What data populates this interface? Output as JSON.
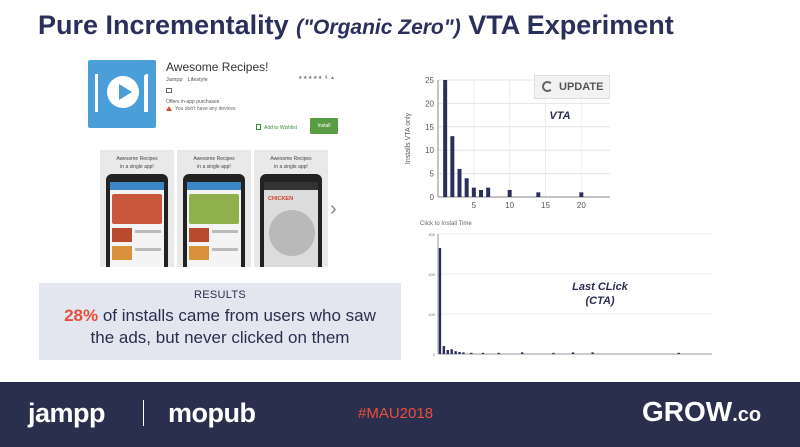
{
  "slide": {
    "title_main": "Pure Incrementality ",
    "title_italic": "(\"Organic Zero\")",
    "title_end": " VTA Experiment"
  },
  "store": {
    "app_name": "Awesome Recipes!",
    "developer": "Jampp",
    "category": "Lifestyle",
    "rating": "★★★★★ 4 ▲",
    "offers": "Offers in-app purchases",
    "devices": "You don't have any devices",
    "wishlist": "Add to Wishlist",
    "install": "Install",
    "accent": "#5a9c44"
  },
  "screenshots": [
    {
      "caption1": "Awesome Recipes",
      "caption2": "in a single app!"
    },
    {
      "caption1": "Awesome Recipes",
      "caption2": "in a single app!"
    },
    {
      "caption1": "Awesome Recipes",
      "caption2": "in a single app!",
      "overlay": "CHICKEN"
    }
  ],
  "results": {
    "heading": "RESULTS",
    "percent": "28%",
    "line1_rest": " of installs came from users who saw",
    "line2": "the ads, but never clicked on them"
  },
  "update_button": "UPDATE",
  "chart_data": [
    {
      "type": "bar",
      "label": "VTA",
      "ylabel": "Installs VTA only",
      "xlabel": "",
      "x": [
        1,
        2,
        3,
        4,
        5,
        6,
        7,
        10,
        14,
        20
      ],
      "values": [
        25,
        13,
        6,
        4,
        2,
        1.5,
        2,
        1.5,
        1,
        1
      ],
      "ylim": [
        0,
        25
      ],
      "xlim": [
        0,
        24
      ],
      "y_ticks": [
        0,
        5,
        10,
        15,
        20,
        25
      ],
      "x_ticks": [
        5,
        10,
        15,
        20
      ],
      "color": "#2b2f5c"
    },
    {
      "type": "bar",
      "label": "Last CLick\n(CTA)",
      "title": "Click to Install Time",
      "ylabel": "",
      "xlabel": "",
      "ylim": [
        0,
        300
      ],
      "y_ticks": [
        0,
        100,
        200,
        300
      ],
      "x": [
        1,
        2,
        3,
        4,
        5,
        6,
        7,
        9,
        12,
        16,
        22,
        30,
        35,
        40,
        62
      ],
      "values": [
        265,
        20,
        10,
        12,
        7,
        5,
        4,
        3,
        3,
        3,
        4,
        3,
        4,
        4,
        3
      ],
      "color": "#2b2f5c"
    }
  ],
  "footer": {
    "logo1": "jampp",
    "logo2": "mopub",
    "hashtag": "#MAU2018",
    "logo3": "GROW",
    "logo3_suffix": ".co",
    "bg": "#2b2f4e",
    "accent": "#e94e3d"
  }
}
